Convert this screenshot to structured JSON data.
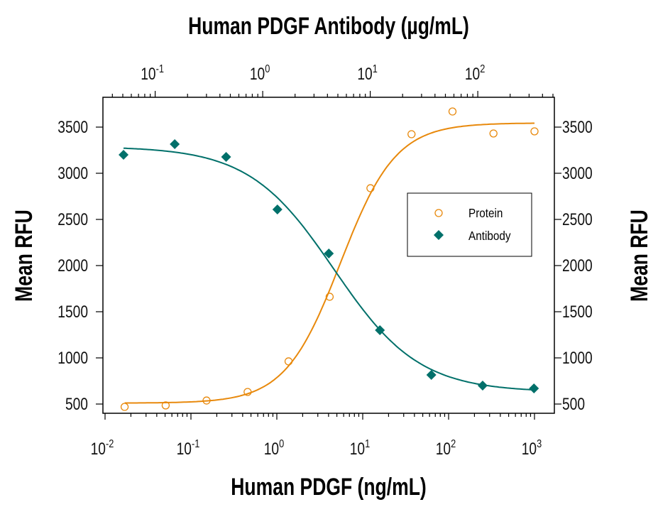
{
  "chart_data": {
    "type": "scatter",
    "title": "",
    "top_xlabel": "Human PDGF Antibody (µg/mL)",
    "xlabel": "Human PDGF (ng/mL)",
    "ylabel": "Mean RFU",
    "ylabel_right": "Mean RFU",
    "x_scale": "log",
    "top_x_scale": "log",
    "xlim": [
      0.0094,
      1700
    ],
    "top_xlim": [
      0.033,
      515
    ],
    "ylim": [
      400,
      3820
    ],
    "grid": false,
    "legend_position": "right-center",
    "x_ticks": [
      {
        "base": "10",
        "exp": "-2",
        "value": 0.01
      },
      {
        "base": "10",
        "exp": "-1",
        "value": 0.1
      },
      {
        "base": "10",
        "exp": "0",
        "value": 1
      },
      {
        "base": "10",
        "exp": "1",
        "value": 10
      },
      {
        "base": "10",
        "exp": "2",
        "value": 100
      },
      {
        "base": "10",
        "exp": "3",
        "value": 1000
      }
    ],
    "top_x_ticks": [
      {
        "base": "10",
        "exp": "-1",
        "value": 0.1
      },
      {
        "base": "10",
        "exp": "0",
        "value": 1
      },
      {
        "base": "10",
        "exp": "1",
        "value": 10
      },
      {
        "base": "10",
        "exp": "2",
        "value": 100
      }
    ],
    "y_ticks": [
      "500",
      "1000",
      "1500",
      "2000",
      "2500",
      "3000",
      "3500"
    ],
    "series": [
      {
        "name": "Protein",
        "axis": "bottom",
        "marker": "open-circle",
        "color": "#E8890C",
        "x": [
          0.0169,
          0.0508,
          0.152,
          0.457,
          1.37,
          4.12,
          12.3,
          37,
          111,
          333,
          1000
        ],
        "y": [
          469,
          485,
          538,
          631,
          962,
          1662,
          2838,
          3423,
          3669,
          3431,
          3454
        ]
      },
      {
        "name": "Antibody",
        "axis": "top",
        "marker": "filled-diamond",
        "color": "#00706A",
        "x": [
          0.0508,
          0.152,
          0.457,
          1.37,
          4.12,
          12.3,
          37,
          111,
          333
        ],
        "y": [
          3200,
          3315,
          3177,
          2608,
          2131,
          1300,
          815,
          700,
          669
        ]
      }
    ]
  }
}
